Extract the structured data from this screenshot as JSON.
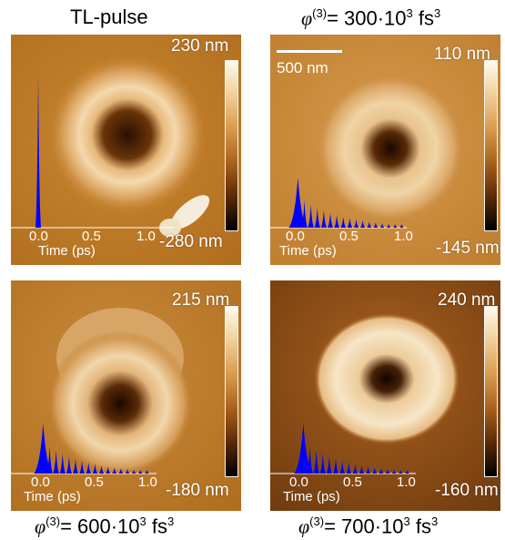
{
  "titles": {
    "tl": {
      "text": "TL-pulse"
    },
    "tr": {
      "prefix": "φ",
      "sup": "(3)",
      "mid": "= 300·10",
      "exp": "3",
      "unit": " fs",
      "unit_exp": "3"
    },
    "bl": {
      "prefix": "φ",
      "sup": "(3)",
      "mid": "= 600·10",
      "exp": "3",
      "unit": " fs",
      "unit_exp": "3"
    },
    "br": {
      "prefix": "φ",
      "sup": "(3)",
      "mid": "= 700·10",
      "exp": "3",
      "unit": " fs",
      "unit_exp": "3"
    }
  },
  "panels": {
    "tl": {
      "cbar_max": "230 nm",
      "cbar_min": "-280 nm",
      "pulse": "single"
    },
    "tr": {
      "cbar_max": "110 nm",
      "cbar_min": "-145 nm",
      "pulse": "train",
      "scalebar": "500 nm"
    },
    "bl": {
      "cbar_max": "215 nm",
      "cbar_min": "-180 nm",
      "pulse": "train"
    },
    "br": {
      "cbar_max": "240 nm",
      "cbar_min": "-160 nm",
      "pulse": "train"
    }
  },
  "inset_axis": {
    "ticks": [
      "0.0",
      "0.5",
      "1.0"
    ],
    "xlabel": "Time (ps)"
  },
  "colors": {
    "pulse_fill": "#0000ff",
    "text_on_image": "#ffffff"
  }
}
